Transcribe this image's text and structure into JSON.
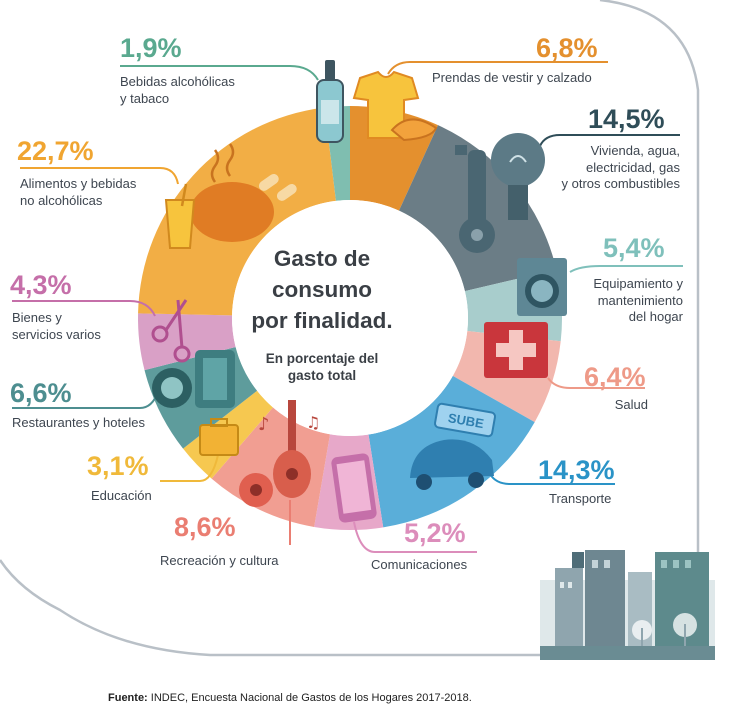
{
  "chart_data": {
    "type": "pie",
    "title": "Gasto de\nconsumo\npor finalidad.",
    "subtitle": "En porcentaje del\ngasto total",
    "unit": "%",
    "slices": [
      {
        "label": "Prendas de vestir y calzado",
        "value": 6.8,
        "display": "6,8%",
        "color": "#e4902e",
        "text_color": "#e4902e"
      },
      {
        "label": "Vivienda, agua,\nelectricidad, gas\ny otros combustibles",
        "value": 14.5,
        "display": "14,5%",
        "color": "#6b7d86",
        "text_color": "#2f4d58"
      },
      {
        "label": "Equipamiento y\nmantenimiento\ndel hogar",
        "value": 5.4,
        "display": "5,4%",
        "color": "#a8cdcc",
        "text_color": "#7fc0bb"
      },
      {
        "label": "Salud",
        "value": 6.4,
        "display": "6,4%",
        "color": "#f2b7ae",
        "text_color": "#ee9a88"
      },
      {
        "label": "Transporte",
        "value": 14.3,
        "display": "14,3%",
        "color": "#5aaed9",
        "text_color": "#2a93c7"
      },
      {
        "label": "Comunicaciones",
        "value": 5.2,
        "display": "5,2%",
        "color": "#e7a8c9",
        "text_color": "#dc8dbb"
      },
      {
        "label": "Recreación y cultura",
        "value": 8.6,
        "display": "8,6%",
        "color": "#f19e92",
        "text_color": "#ea7e72"
      },
      {
        "label": "Educación",
        "value": 3.1,
        "display": "3,1%",
        "color": "#f6c850",
        "text_color": "#f0b93a"
      },
      {
        "label": "Restaurantes y hoteles",
        "value": 6.6,
        "display": "6,6%",
        "color": "#5e9c9c",
        "text_color": "#4d8e90"
      },
      {
        "label": "Bienes y\nservicios varios",
        "value": 4.3,
        "display": "4,3%",
        "color": "#d9a0c6",
        "text_color": "#c56fa9"
      },
      {
        "label": "Alimentos y bebidas\nno alcohólicas",
        "value": 22.7,
        "display": "22,7%",
        "color": "#f2ae45",
        "text_color": "#f0a531"
      },
      {
        "label": "Bebidas alcohólicas\ny tabaco",
        "value": 1.9,
        "display": "1,9%",
        "color": "#7fbeb0",
        "text_color": "#5aa98f"
      }
    ]
  },
  "source": {
    "prefix": "Fuente:",
    "text": " INDEC, Encuesta Nacional de Gastos de los Hogares 2017-2018."
  },
  "icons": [
    "bottle-icon",
    "tshirt-icon",
    "slipper-icon",
    "key-icon",
    "lightbulb-icon",
    "washing-machine-icon",
    "medical-cross-icon",
    "bus-sign-icon",
    "car-icon",
    "smartphone-icon",
    "guitar-icon",
    "music-note-icon",
    "soccer-ball-icon",
    "briefcase-icon",
    "suitcase-icon",
    "plate-icon",
    "scissors-icon",
    "roast-chicken-icon",
    "juice-glass-icon",
    "city-skyline-icon"
  ]
}
